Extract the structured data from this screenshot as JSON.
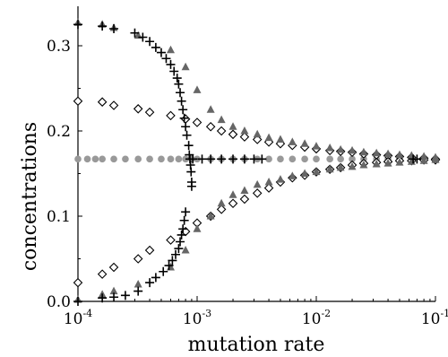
{
  "chart_data": {
    "type": "scatter",
    "title": "",
    "xlabel": "mutation rate",
    "ylabel": "concentrations",
    "x_scale": "log",
    "xlim": [
      0.0001,
      0.1
    ],
    "ylim": [
      0.0,
      0.34
    ],
    "x_ticks": [
      {
        "value": 0.0001,
        "base": "10",
        "exp": "-4"
      },
      {
        "value": 0.001,
        "base": "10",
        "exp": "-3"
      },
      {
        "value": 0.01,
        "base": "10",
        "exp": "-2"
      },
      {
        "value": 0.1,
        "base": "10",
        "exp": "-1"
      }
    ],
    "y_ticks": [
      {
        "value": 0.0,
        "label": "0.0"
      },
      {
        "value": 0.1,
        "label": "0.1"
      },
      {
        "value": 0.2,
        "label": "0.2"
      },
      {
        "value": 0.3,
        "label": "0.3"
      }
    ],
    "grid": false,
    "legend": "none",
    "colors": {
      "triangle": "#666666",
      "circle": "#999999",
      "cross": "#000000",
      "diamond": "#000000"
    },
    "series": [
      {
        "marker": "triangle",
        "points": [
          [
            0.0001,
            0.327
          ],
          [
            0.00016,
            0.325
          ],
          [
            0.0002,
            0.321
          ],
          [
            0.00032,
            0.312
          ],
          [
            0.0006,
            0.295
          ],
          [
            0.0008,
            0.275
          ],
          [
            0.001,
            0.248
          ],
          [
            0.0013,
            0.225
          ],
          [
            0.0016,
            0.213
          ],
          [
            0.002,
            0.205
          ],
          [
            0.0025,
            0.2
          ],
          [
            0.0032,
            0.196
          ],
          [
            0.004,
            0.192
          ],
          [
            0.005,
            0.19
          ],
          [
            0.0063,
            0.187
          ],
          [
            0.008,
            0.185
          ],
          [
            0.01,
            0.182
          ],
          [
            0.013,
            0.18
          ],
          [
            0.016,
            0.178
          ],
          [
            0.02,
            0.177
          ],
          [
            0.025,
            0.175
          ],
          [
            0.032,
            0.174
          ],
          [
            0.04,
            0.173
          ],
          [
            0.05,
            0.172
          ],
          [
            0.063,
            0.171
          ],
          [
            0.08,
            0.17
          ],
          [
            0.1,
            0.169
          ],
          [
            0.0001,
            0.002
          ],
          [
            0.00016,
            0.008
          ],
          [
            0.0002,
            0.012
          ],
          [
            0.00032,
            0.02
          ],
          [
            0.0006,
            0.04
          ],
          [
            0.0008,
            0.06
          ],
          [
            0.001,
            0.085
          ],
          [
            0.0013,
            0.1
          ],
          [
            0.0016,
            0.115
          ],
          [
            0.002,
            0.125
          ],
          [
            0.0025,
            0.13
          ],
          [
            0.0032,
            0.137
          ],
          [
            0.004,
            0.14
          ],
          [
            0.005,
            0.143
          ],
          [
            0.0063,
            0.147
          ],
          [
            0.008,
            0.15
          ],
          [
            0.01,
            0.152
          ],
          [
            0.013,
            0.155
          ],
          [
            0.016,
            0.157
          ],
          [
            0.02,
            0.158
          ],
          [
            0.025,
            0.16
          ],
          [
            0.032,
            0.161
          ],
          [
            0.04,
            0.162
          ],
          [
            0.05,
            0.163
          ],
          [
            0.063,
            0.164
          ],
          [
            0.08,
            0.165
          ],
          [
            0.1,
            0.166
          ]
        ]
      },
      {
        "marker": "circle",
        "points": [
          [
            0.0001,
            0.167
          ],
          [
            0.00012,
            0.167
          ],
          [
            0.00014,
            0.167
          ],
          [
            0.00016,
            0.167
          ],
          [
            0.0002,
            0.167
          ],
          [
            0.00025,
            0.167
          ],
          [
            0.00032,
            0.167
          ],
          [
            0.0004,
            0.167
          ],
          [
            0.0005,
            0.167
          ],
          [
            0.0006,
            0.167
          ],
          [
            0.0007,
            0.167
          ],
          [
            0.0008,
            0.167
          ],
          [
            0.0009,
            0.167
          ],
          [
            0.001,
            0.167
          ],
          [
            0.0013,
            0.167
          ],
          [
            0.0016,
            0.167
          ],
          [
            0.002,
            0.167
          ],
          [
            0.0025,
            0.167
          ],
          [
            0.0032,
            0.167
          ],
          [
            0.004,
            0.167
          ],
          [
            0.005,
            0.167
          ],
          [
            0.0063,
            0.167
          ],
          [
            0.008,
            0.167
          ],
          [
            0.01,
            0.167
          ],
          [
            0.013,
            0.167
          ],
          [
            0.016,
            0.167
          ],
          [
            0.02,
            0.167
          ],
          [
            0.025,
            0.167
          ],
          [
            0.032,
            0.167
          ],
          [
            0.04,
            0.167
          ],
          [
            0.05,
            0.167
          ],
          [
            0.063,
            0.167
          ],
          [
            0.08,
            0.167
          ],
          [
            0.1,
            0.167
          ]
        ]
      },
      {
        "marker": "cross",
        "points": [
          [
            0.0001,
            0.325
          ],
          [
            0.00016,
            0.323
          ],
          [
            0.0002,
            0.32
          ],
          [
            0.0003,
            0.315
          ],
          [
            0.00035,
            0.31
          ],
          [
            0.0004,
            0.305
          ],
          [
            0.00045,
            0.298
          ],
          [
            0.0005,
            0.292
          ],
          [
            0.00055,
            0.285
          ],
          [
            0.0006,
            0.278
          ],
          [
            0.00064,
            0.27
          ],
          [
            0.00068,
            0.262
          ],
          [
            0.0007,
            0.255
          ],
          [
            0.00072,
            0.245
          ],
          [
            0.00074,
            0.235
          ],
          [
            0.00076,
            0.225
          ],
          [
            0.00078,
            0.215
          ],
          [
            0.0008,
            0.205
          ],
          [
            0.00082,
            0.195
          ],
          [
            0.00085,
            0.183
          ],
          [
            0.00086,
            0.172
          ],
          [
            0.00087,
            0.167
          ],
          [
            0.00088,
            0.16
          ],
          [
            0.00089,
            0.152
          ],
          [
            0.0009,
            0.14
          ],
          [
            0.0009,
            0.135
          ],
          [
            0.00092,
            0.167
          ],
          [
            0.0011,
            0.167
          ],
          [
            0.0013,
            0.167
          ],
          [
            0.0016,
            0.167
          ],
          [
            0.002,
            0.167
          ],
          [
            0.0025,
            0.167
          ],
          [
            0.003,
            0.167
          ],
          [
            0.0035,
            0.167
          ],
          [
            0.065,
            0.167
          ],
          [
            0.07,
            0.167
          ],
          [
            0.0008,
            0.105
          ],
          [
            0.00078,
            0.095
          ],
          [
            0.00076,
            0.085
          ],
          [
            0.00074,
            0.078
          ],
          [
            0.00072,
            0.07
          ],
          [
            0.0007,
            0.062
          ],
          [
            0.00066,
            0.055
          ],
          [
            0.00062,
            0.048
          ],
          [
            0.00058,
            0.042
          ],
          [
            0.00052,
            0.035
          ],
          [
            0.00045,
            0.028
          ],
          [
            0.0004,
            0.022
          ],
          [
            0.00032,
            0.012
          ],
          [
            0.00025,
            0.007
          ],
          [
            0.0002,
            0.005
          ],
          [
            0.00016,
            0.004
          ],
          [
            0.0001,
            0.0
          ]
        ]
      },
      {
        "marker": "diamond",
        "points": [
          [
            0.0001,
            0.235
          ],
          [
            0.00016,
            0.234
          ],
          [
            0.0002,
            0.23
          ],
          [
            0.00032,
            0.226
          ],
          [
            0.0004,
            0.222
          ],
          [
            0.0006,
            0.218
          ],
          [
            0.0008,
            0.214
          ],
          [
            0.001,
            0.21
          ],
          [
            0.0013,
            0.205
          ],
          [
            0.0016,
            0.2
          ],
          [
            0.002,
            0.196
          ],
          [
            0.0025,
            0.193
          ],
          [
            0.0032,
            0.19
          ],
          [
            0.004,
            0.187
          ],
          [
            0.005,
            0.185
          ],
          [
            0.0063,
            0.183
          ],
          [
            0.008,
            0.181
          ],
          [
            0.01,
            0.179
          ],
          [
            0.013,
            0.177
          ],
          [
            0.016,
            0.176
          ],
          [
            0.02,
            0.175
          ],
          [
            0.025,
            0.173
          ],
          [
            0.032,
            0.172
          ],
          [
            0.04,
            0.171
          ],
          [
            0.05,
            0.17
          ],
          [
            0.063,
            0.169
          ],
          [
            0.08,
            0.168
          ],
          [
            0.1,
            0.167
          ],
          [
            0.0001,
            0.022
          ],
          [
            0.00016,
            0.032
          ],
          [
            0.0002,
            0.04
          ],
          [
            0.00032,
            0.05
          ],
          [
            0.0004,
            0.06
          ],
          [
            0.0006,
            0.072
          ],
          [
            0.0008,
            0.082
          ],
          [
            0.001,
            0.092
          ],
          [
            0.0013,
            0.1
          ],
          [
            0.0016,
            0.108
          ],
          [
            0.002,
            0.115
          ],
          [
            0.0025,
            0.12
          ],
          [
            0.0032,
            0.127
          ],
          [
            0.004,
            0.133
          ],
          [
            0.005,
            0.14
          ],
          [
            0.0063,
            0.145
          ],
          [
            0.008,
            0.148
          ],
          [
            0.01,
            0.152
          ],
          [
            0.013,
            0.155
          ],
          [
            0.016,
            0.157
          ],
          [
            0.02,
            0.16
          ],
          [
            0.025,
            0.162
          ],
          [
            0.032,
            0.163
          ],
          [
            0.04,
            0.164
          ],
          [
            0.05,
            0.165
          ],
          [
            0.063,
            0.165
          ],
          [
            0.08,
            0.166
          ],
          [
            0.1,
            0.166
          ]
        ]
      }
    ]
  }
}
